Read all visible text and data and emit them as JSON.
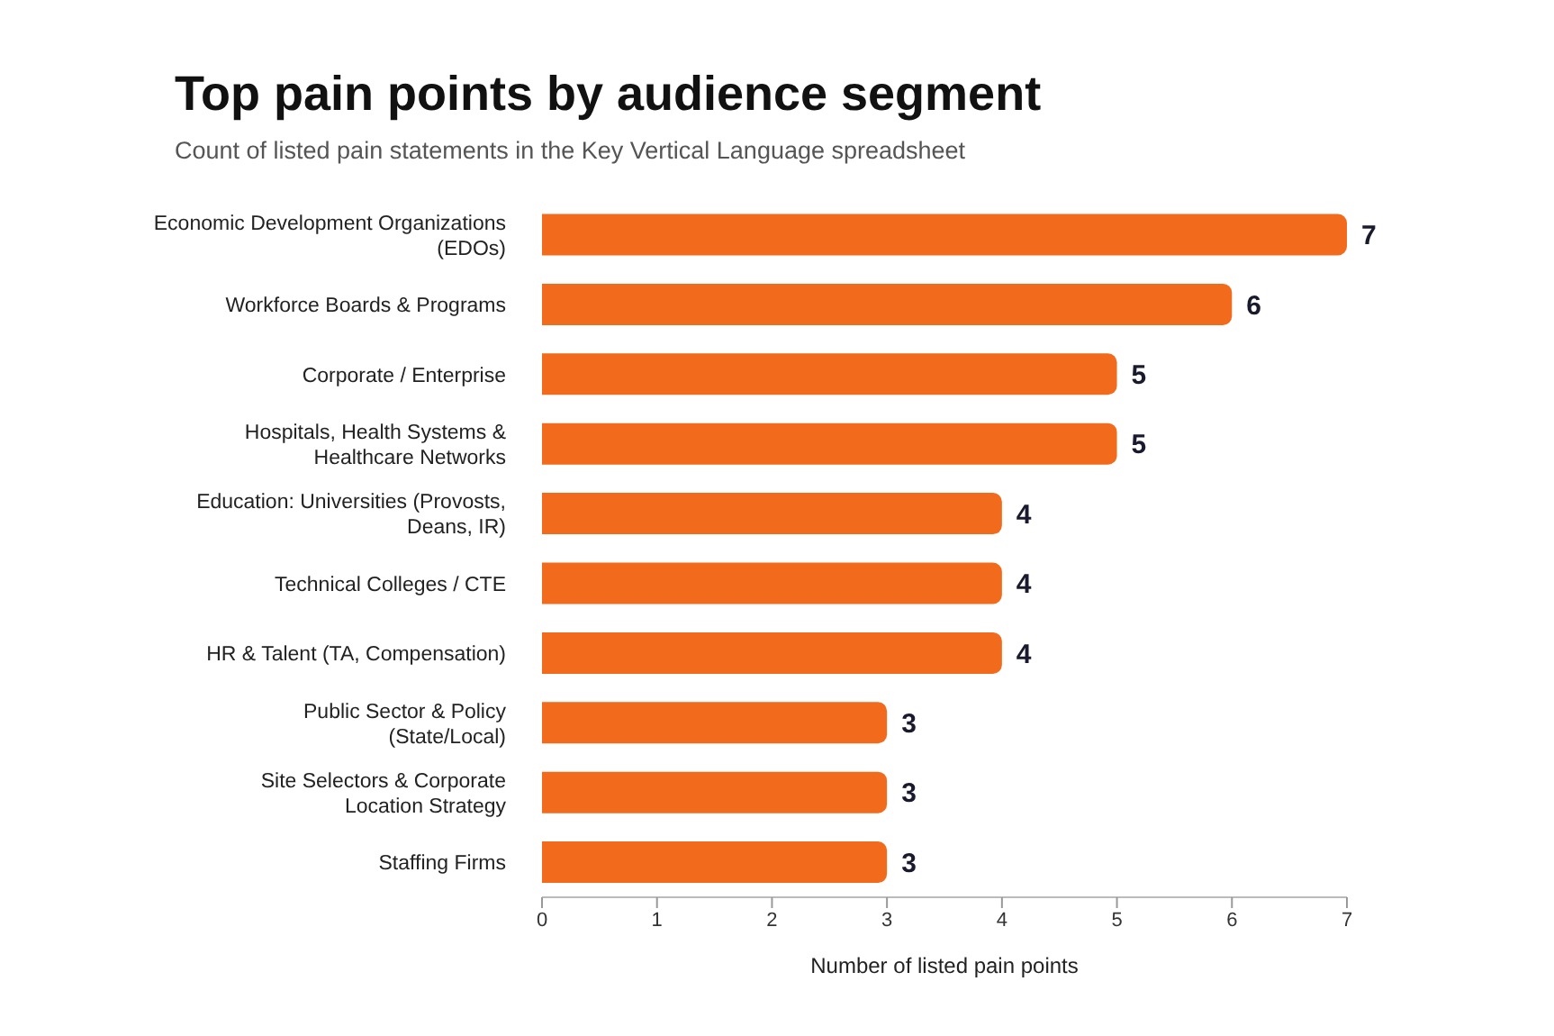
{
  "chart_data": {
    "type": "bar",
    "orientation": "horizontal",
    "title": "Top pain points by audience segment",
    "subtitle": "Count of listed pain statements in the Key Vertical Language spreadsheet",
    "xlabel": "Number of listed pain points",
    "categories": [
      "Economic Development Organizations (EDOs)",
      "Workforce Boards & Programs",
      "Corporate / Enterprise",
      "Hospitals, Health Systems & Healthcare Networks",
      "Education: Universities (Provosts, Deans, IR)",
      "Technical Colleges / CTE",
      "HR & Talent (TA, Compensation)",
      "Public Sector & Policy (State/Local)",
      "Site Selectors & Corporate Location Strategy",
      "Staffing Firms"
    ],
    "values": [
      7,
      6,
      5,
      5,
      4,
      4,
      4,
      3,
      3,
      3
    ],
    "color": "#f26b1d",
    "xlim": [
      0,
      7
    ],
    "xticks": [
      0,
      1,
      2,
      3,
      4,
      5,
      6,
      7
    ],
    "data_labels": true
  }
}
